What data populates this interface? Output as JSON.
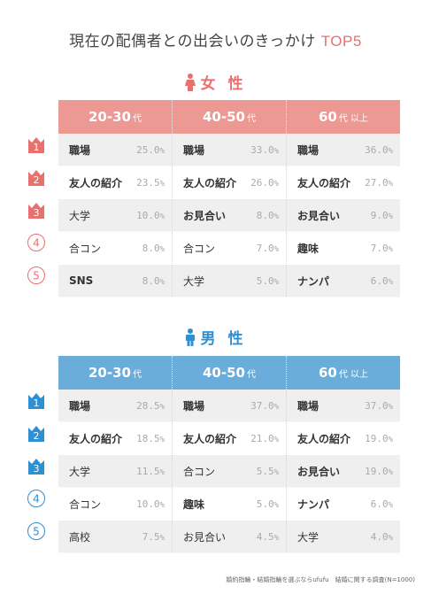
{
  "title": {
    "main": "現在の配偶者との出会いのきっかけ",
    "accent": "TOP5"
  },
  "colors": {
    "female": "#e8716f",
    "female_header": "#ec9893",
    "male": "#2f8fd3",
    "male_header": "#6aaddb"
  },
  "chart_data": [
    {
      "type": "table",
      "section": "女 性",
      "columns": [
        {
          "label": "20-30",
          "suffix": "代"
        },
        {
          "label": "40-50",
          "suffix": "代"
        },
        {
          "label": "60",
          "suffix": "代 以上"
        }
      ],
      "ranks": [
        "1",
        "2",
        "3",
        "4",
        "5"
      ],
      "rows": [
        [
          {
            "label": "職場",
            "value": "25.0",
            "bold": true
          },
          {
            "label": "職場",
            "value": "33.0",
            "bold": true
          },
          {
            "label": "職場",
            "value": "36.0",
            "bold": true
          }
        ],
        [
          {
            "label": "友人の紹介",
            "value": "23.5",
            "bold": true
          },
          {
            "label": "友人の紹介",
            "value": "26.0",
            "bold": true
          },
          {
            "label": "友人の紹介",
            "value": "27.0",
            "bold": true
          }
        ],
        [
          {
            "label": "大学",
            "value": "10.0",
            "bold": false
          },
          {
            "label": "お見合い",
            "value": "8.0",
            "bold": true
          },
          {
            "label": "お見合い",
            "value": "9.0",
            "bold": true
          }
        ],
        [
          {
            "label": "合コン",
            "value": "8.0",
            "bold": false
          },
          {
            "label": "合コン",
            "value": "7.0",
            "bold": false
          },
          {
            "label": "趣味",
            "value": "7.0",
            "bold": true
          }
        ],
        [
          {
            "label": "SNS",
            "value": "8.0",
            "bold": true
          },
          {
            "label": "大学",
            "value": "5.0",
            "bold": false
          },
          {
            "label": "ナンパ",
            "value": "6.0",
            "bold": true
          }
        ]
      ]
    },
    {
      "type": "table",
      "section": "男 性",
      "columns": [
        {
          "label": "20-30",
          "suffix": "代"
        },
        {
          "label": "40-50",
          "suffix": "代"
        },
        {
          "label": "60",
          "suffix": "代 以上"
        }
      ],
      "ranks": [
        "1",
        "2",
        "3",
        "4",
        "5"
      ],
      "rows": [
        [
          {
            "label": "職場",
            "value": "28.5",
            "bold": true
          },
          {
            "label": "職場",
            "value": "37.0",
            "bold": true
          },
          {
            "label": "職場",
            "value": "37.0",
            "bold": true
          }
        ],
        [
          {
            "label": "友人の紹介",
            "value": "18.5",
            "bold": true
          },
          {
            "label": "友人の紹介",
            "value": "21.0",
            "bold": true
          },
          {
            "label": "友人の紹介",
            "value": "19.0",
            "bold": true
          }
        ],
        [
          {
            "label": "大学",
            "value": "11.5",
            "bold": false
          },
          {
            "label": "合コン",
            "value": "5.5",
            "bold": false
          },
          {
            "label": "お見合い",
            "value": "19.0",
            "bold": true
          }
        ],
        [
          {
            "label": "合コン",
            "value": "10.0",
            "bold": false
          },
          {
            "label": "趣味",
            "value": "5.0",
            "bold": true
          },
          {
            "label": "ナンパ",
            "value": "6.0",
            "bold": true
          }
        ],
        [
          {
            "label": "高校",
            "value": "7.5",
            "bold": false
          },
          {
            "label": "お見合い",
            "value": "4.5",
            "bold": false
          },
          {
            "label": "大学",
            "value": "4.0",
            "bold": false
          }
        ]
      ]
    }
  ],
  "unit": "%",
  "footer": "婚約指輪・結婚指輪を選ぶならufufu　結婚に関する調査(N=1000)"
}
